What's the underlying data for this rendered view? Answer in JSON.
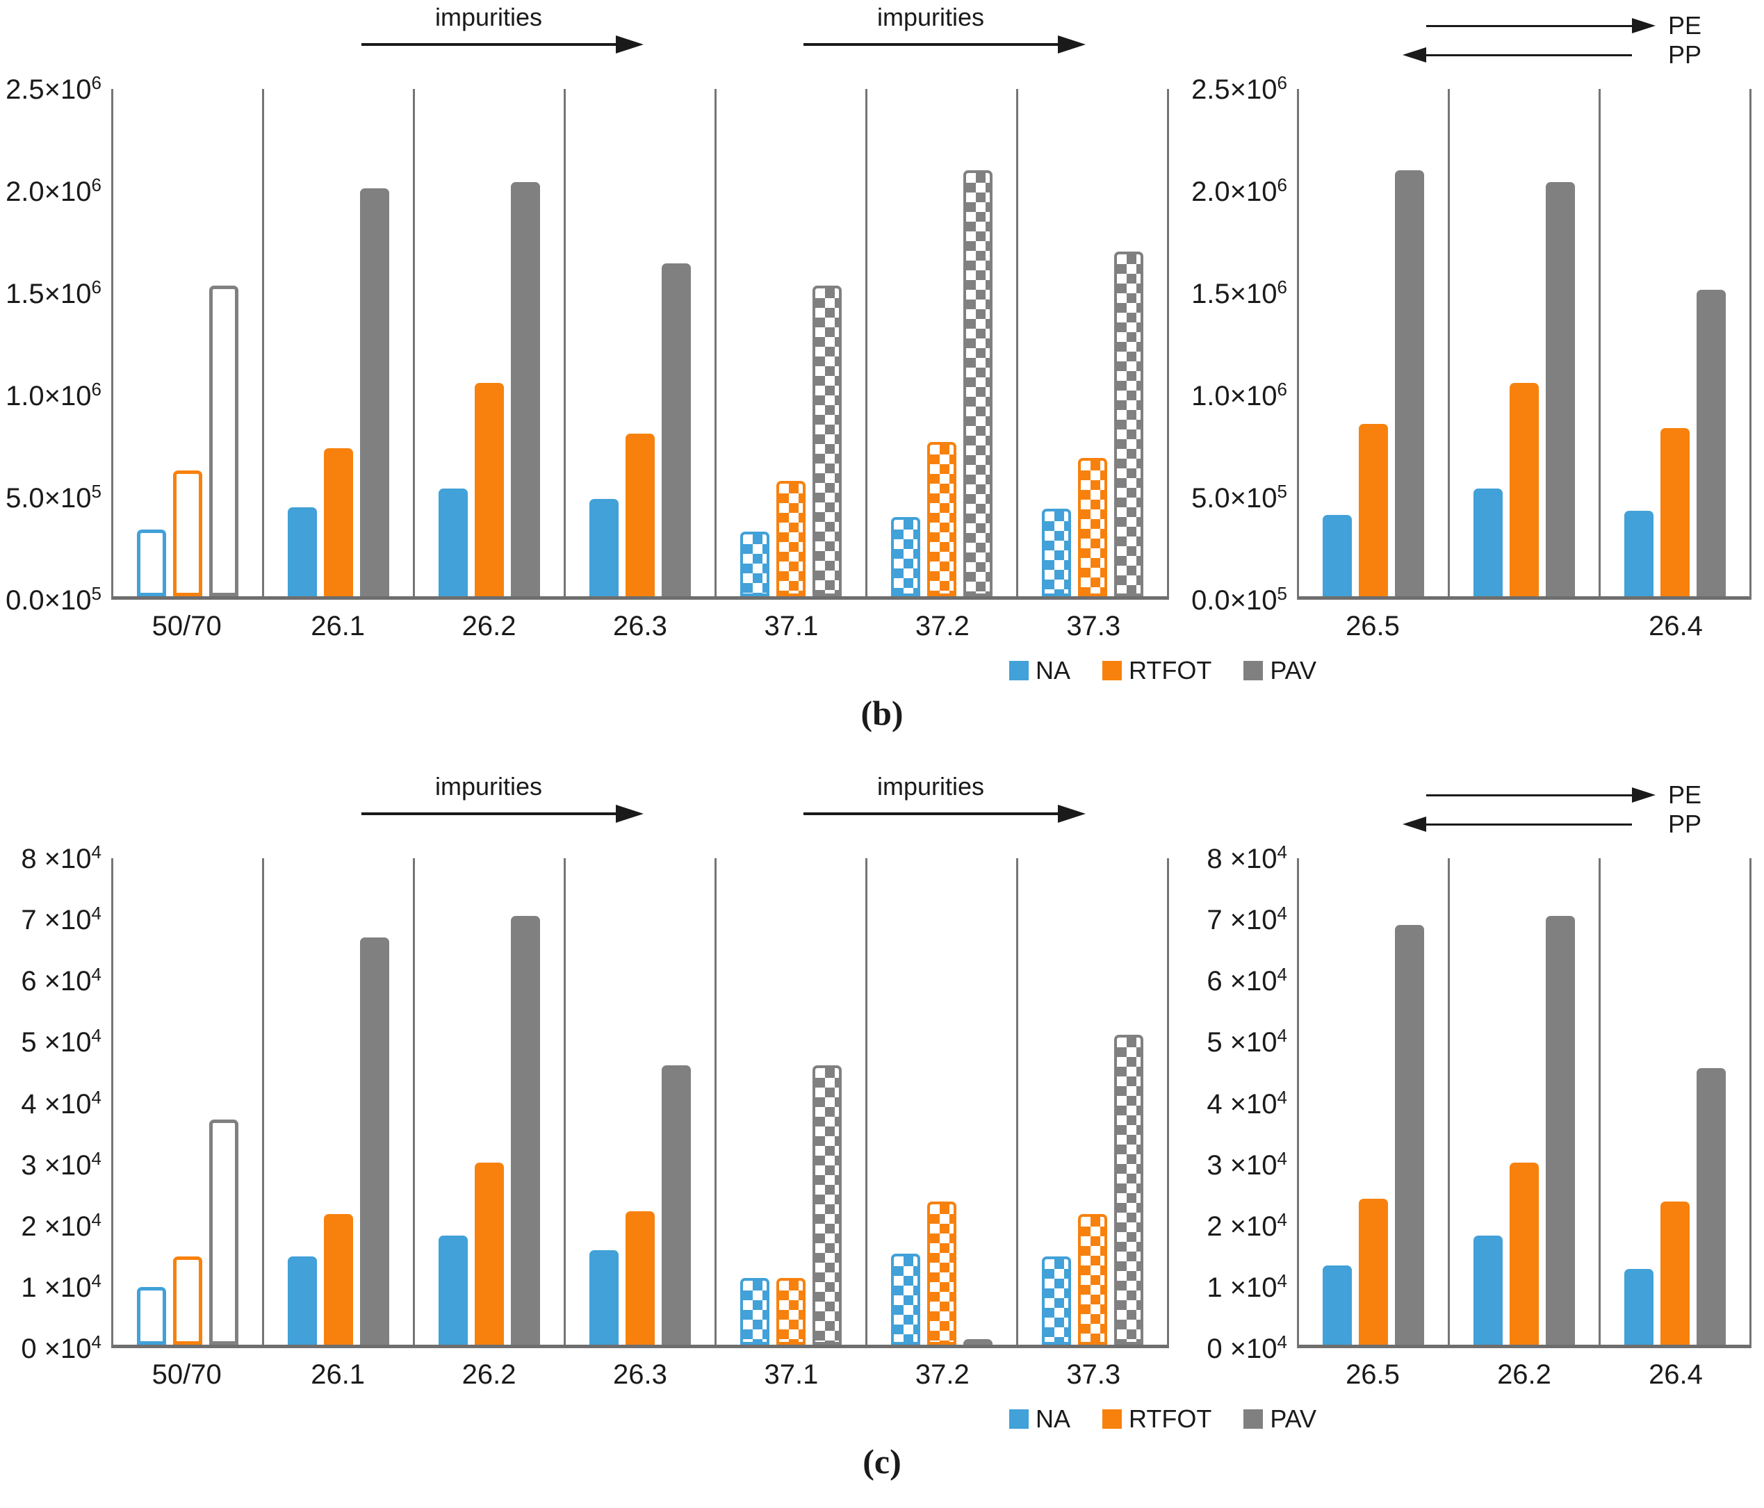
{
  "figure": {
    "captions": {
      "b": "(b)",
      "c": "(c)"
    }
  },
  "annotations": {
    "impurities": "impurities",
    "pe": "PE",
    "pp": "PP"
  },
  "colors": {
    "na": "#41A1D8",
    "rtfot": "#F8810D",
    "pav": "#808080",
    "axis": "#6e6e6e",
    "grid": "#757575",
    "text": "#1a1a1a"
  },
  "legend": {
    "items": [
      {
        "label": "NA",
        "series": "na"
      },
      {
        "label": "RTFOT",
        "series": "rtfot"
      },
      {
        "label": "PAV",
        "series": "pav"
      }
    ]
  },
  "chart_data": [
    {
      "id": "b-left",
      "type": "bar",
      "panel": "b",
      "ylim": [
        0,
        2500000
      ],
      "grid": "vertical-dividers-only",
      "yticks": [
        {
          "text": "2.5×10",
          "sup": "6",
          "value": 2500000
        },
        {
          "text": "2.0×10",
          "sup": "6",
          "value": 2000000
        },
        {
          "text": "1.5×10",
          "sup": "6",
          "value": 1500000
        },
        {
          "text": "1.0×10",
          "sup": "6",
          "value": 1000000
        },
        {
          "text": "5.0×10",
          "sup": "5",
          "value": 500000
        },
        {
          "text": "0.0×10",
          "sup": "5",
          "value": 0
        }
      ],
      "categories": [
        "50/70",
        "26.1",
        "26.2",
        "26.3",
        "37.1",
        "37.2",
        "37.3"
      ],
      "bar_styles": [
        "outline",
        "solid",
        "solid",
        "solid",
        "checker",
        "checker",
        "checker"
      ],
      "series": [
        {
          "name": "NA",
          "key": "na",
          "values": [
            330000,
            440000,
            530000,
            480000,
            320000,
            390000,
            430000
          ]
        },
        {
          "name": "RTFOT",
          "key": "rtfot",
          "values": [
            620000,
            730000,
            1050000,
            800000,
            570000,
            760000,
            680000
          ]
        },
        {
          "name": "PAV",
          "key": "pav",
          "values": [
            1530000,
            2010000,
            2040000,
            1640000,
            1530000,
            2100000,
            1700000
          ]
        }
      ],
      "annotations": [
        {
          "text": "impurities",
          "type": "arrow-right",
          "over": [
            "26.1",
            "26.3"
          ]
        },
        {
          "text": "impurities",
          "type": "arrow-right",
          "over": [
            "37.1",
            "37.3"
          ]
        }
      ]
    },
    {
      "id": "b-right",
      "type": "bar",
      "panel": "b",
      "ylim": [
        0,
        2500000
      ],
      "grid": "vertical-dividers-only",
      "yticks": [
        {
          "text": "2.5×10",
          "sup": "6",
          "value": 2500000
        },
        {
          "text": "2.0×10",
          "sup": "6",
          "value": 2000000
        },
        {
          "text": "1.5×10",
          "sup": "6",
          "value": 1500000
        },
        {
          "text": "1.0×10",
          "sup": "6",
          "value": 1000000
        },
        {
          "text": "5.0×10",
          "sup": "5",
          "value": 500000
        },
        {
          "text": "0.0×10",
          "sup": "5",
          "value": 0
        }
      ],
      "categories": [
        "26.5",
        "",
        "26.4"
      ],
      "bar_styles": [
        "solid",
        "solid",
        "solid"
      ],
      "series": [
        {
          "name": "NA",
          "key": "na",
          "values": [
            400000,
            530000,
            420000
          ]
        },
        {
          "name": "RTFOT",
          "key": "rtfot",
          "values": [
            850000,
            1050000,
            830000
          ]
        },
        {
          "name": "PAV",
          "key": "pav",
          "values": [
            2100000,
            2040000,
            1510000
          ]
        }
      ],
      "annotations": [
        {
          "text": "PE",
          "type": "arrow-right"
        },
        {
          "text": "PP",
          "type": "arrow-left"
        }
      ]
    },
    {
      "id": "c-left",
      "type": "bar",
      "panel": "c",
      "ylim": [
        0,
        80000
      ],
      "grid": "vertical-dividers-only",
      "yticks": [
        {
          "text": "8 ×10",
          "sup": "4",
          "value": 80000
        },
        {
          "text": "7 ×10",
          "sup": "4",
          "value": 70000
        },
        {
          "text": "6 ×10",
          "sup": "4",
          "value": 60000
        },
        {
          "text": "5 ×10",
          "sup": "4",
          "value": 50000
        },
        {
          "text": "4 ×10",
          "sup": "4",
          "value": 40000
        },
        {
          "text": "3 ×10",
          "sup": "4",
          "value": 30000
        },
        {
          "text": "2 ×10",
          "sup": "4",
          "value": 20000
        },
        {
          "text": "1 ×10",
          "sup": "4",
          "value": 10000
        },
        {
          "text": "0 ×10",
          "sup": "4",
          "value": 0
        }
      ],
      "categories": [
        "50/70",
        "26.1",
        "26.2",
        "26.3",
        "37.1",
        "37.2",
        "37.3"
      ],
      "bar_styles": [
        "outline",
        "solid",
        "solid",
        "solid",
        "checker",
        "checker",
        "checker"
      ],
      "series": [
        {
          "name": "NA",
          "key": "na",
          "values": [
            9500,
            14500,
            18000,
            15500,
            11000,
            15000,
            14500
          ]
        },
        {
          "name": "RTFOT",
          "key": "rtfot",
          "values": [
            14500,
            21500,
            30000,
            22000,
            11000,
            23500,
            21500
          ]
        },
        {
          "name": "PAV",
          "key": "pav",
          "values": [
            37000,
            67000,
            70500,
            46000,
            46000,
            800,
            51000
          ]
        }
      ],
      "annotations": [
        {
          "text": "impurities",
          "type": "arrow-right",
          "over": [
            "26.1",
            "26.3"
          ]
        },
        {
          "text": "impurities",
          "type": "arrow-right",
          "over": [
            "37.1",
            "37.3"
          ]
        }
      ]
    },
    {
      "id": "c-right",
      "type": "bar",
      "panel": "c",
      "ylim": [
        0,
        80000
      ],
      "grid": "vertical-dividers-only",
      "yticks": [
        {
          "text": "8 ×10",
          "sup": "4",
          "value": 80000
        },
        {
          "text": "7 ×10",
          "sup": "4",
          "value": 70000
        },
        {
          "text": "6 ×10",
          "sup": "4",
          "value": 60000
        },
        {
          "text": "5 ×10",
          "sup": "4",
          "value": 50000
        },
        {
          "text": "4 ×10",
          "sup": "4",
          "value": 40000
        },
        {
          "text": "3 ×10",
          "sup": "4",
          "value": 30000
        },
        {
          "text": "2 ×10",
          "sup": "4",
          "value": 20000
        },
        {
          "text": "1 ×10",
          "sup": "4",
          "value": 10000
        },
        {
          "text": "0 ×10",
          "sup": "4",
          "value": 0
        }
      ],
      "categories": [
        "26.5",
        "26.2",
        "26.4"
      ],
      "bar_styles": [
        "solid",
        "solid",
        "solid"
      ],
      "series": [
        {
          "name": "NA",
          "key": "na",
          "values": [
            13000,
            18000,
            12500
          ]
        },
        {
          "name": "RTFOT",
          "key": "rtfot",
          "values": [
            24000,
            30000,
            23500
          ]
        },
        {
          "name": "PAV",
          "key": "pav",
          "values": [
            69000,
            70500,
            45500
          ]
        }
      ],
      "annotations": [
        {
          "text": "PE",
          "type": "arrow-right"
        },
        {
          "text": "PP",
          "type": "arrow-left"
        }
      ]
    }
  ]
}
